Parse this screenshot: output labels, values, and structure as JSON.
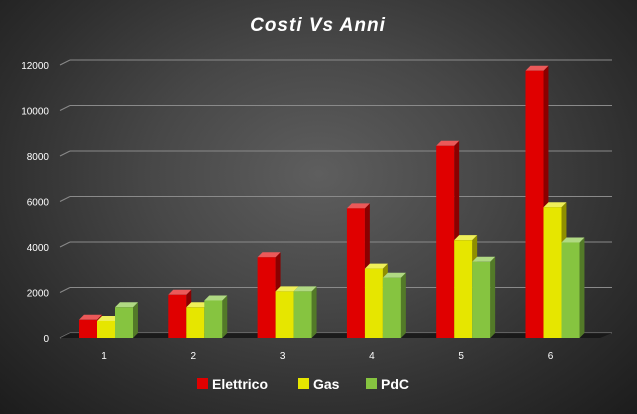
{
  "chart_data": {
    "type": "bar",
    "title": "Costi Vs Anni",
    "categories": [
      "1",
      "2",
      "3",
      "4",
      "5",
      "6"
    ],
    "series": [
      {
        "name": "Elettrico",
        "values": [
          800,
          1900,
          3550,
          5700,
          8450,
          11750
        ],
        "color": "#e00000"
      },
      {
        "name": "Gas",
        "values": [
          750,
          1350,
          2050,
          3050,
          4300,
          5750
        ],
        "color": "#e6e600"
      },
      {
        "name": "PdC",
        "values": [
          1350,
          1650,
          2050,
          2650,
          3350,
          4200
        ],
        "color": "#86c440"
      }
    ],
    "ylim": [
      0,
      12000
    ],
    "yticks": [
      0,
      2000,
      4000,
      6000,
      8000,
      10000,
      12000
    ],
    "grid": true,
    "legend": "bottom",
    "style": "3d-clustered-column"
  }
}
